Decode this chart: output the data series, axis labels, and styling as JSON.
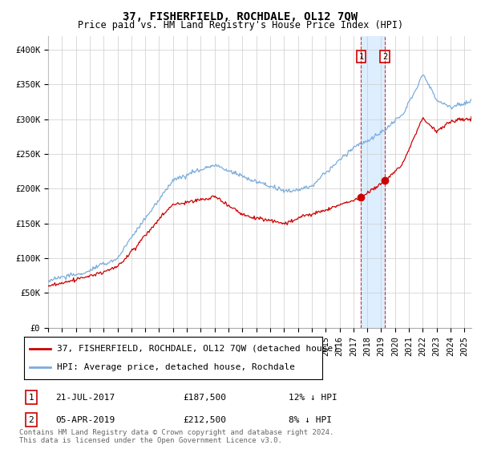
{
  "title": "37, FISHERFIELD, ROCHDALE, OL12 7QW",
  "subtitle": "Price paid vs. HM Land Registry's House Price Index (HPI)",
  "ylabel_ticks": [
    "£0",
    "£50K",
    "£100K",
    "£150K",
    "£200K",
    "£250K",
    "£300K",
    "£350K",
    "£400K"
  ],
  "ytick_values": [
    0,
    50000,
    100000,
    150000,
    200000,
    250000,
    300000,
    350000,
    400000
  ],
  "ylim": [
    0,
    420000
  ],
  "xlim_start": 1995.0,
  "xlim_end": 2025.5,
  "legend_label_red": "37, FISHERFIELD, ROCHDALE, OL12 7QW (detached house)",
  "legend_label_blue": "HPI: Average price, detached house, Rochdale",
  "transaction1_label": "1",
  "transaction1_date": "21-JUL-2017",
  "transaction1_price": "£187,500",
  "transaction1_hpi": "12% ↓ HPI",
  "transaction1_year": 2017.55,
  "transaction1_value": 187500,
  "transaction2_label": "2",
  "transaction2_date": "05-APR-2019",
  "transaction2_price": "£212,500",
  "transaction2_hpi": "8% ↓ HPI",
  "transaction2_year": 2019.27,
  "transaction2_value": 212500,
  "footnote": "Contains HM Land Registry data © Crown copyright and database right 2024.\nThis data is licensed under the Open Government Licence v3.0.",
  "red_color": "#cc0000",
  "blue_color": "#7aaddc",
  "highlight_color": "#ddeeff",
  "marker_color": "#cc0000",
  "bg_color": "#ffffff",
  "grid_color": "#cccccc",
  "title_fontsize": 10,
  "subtitle_fontsize": 8.5,
  "tick_fontsize": 7.5,
  "legend_fontsize": 8,
  "footnote_fontsize": 6.5
}
